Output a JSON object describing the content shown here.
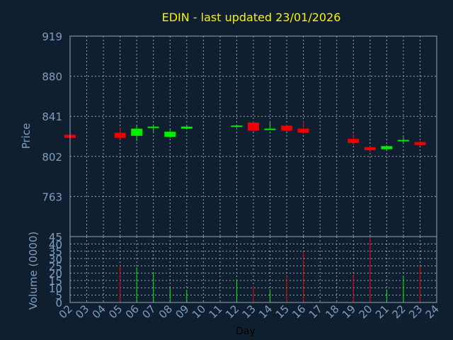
{
  "colors": {
    "background": "#0f1f30",
    "panel": "#0f1f30",
    "border": "#8fa6c0",
    "grid": "#8fa6c0",
    "title": "#f5f500",
    "axis_text": "#7f9ec0",
    "xlabel": "#000000",
    "up": "#00ee00",
    "down": "#ee0000"
  },
  "chart_data": [
    {
      "type": "candlestick",
      "title": "EDIN - last updated 23/01/2026",
      "ylabel": "Price",
      "ylim": [
        724,
        919
      ],
      "yticks": [
        919,
        880,
        841,
        802,
        763
      ],
      "grid": true,
      "candles": [
        {
          "x": 2,
          "open": 823,
          "high": 823,
          "low": 820,
          "close": 820
        },
        {
          "x": 5,
          "open": 825,
          "high": 830,
          "low": 818,
          "close": 820
        },
        {
          "x": 6,
          "open": 822,
          "high": 832,
          "low": 817,
          "close": 829
        },
        {
          "x": 7,
          "open": 830,
          "high": 832,
          "low": 826,
          "close": 831
        },
        {
          "x": 8,
          "open": 821,
          "high": 828,
          "low": 820,
          "close": 826
        },
        {
          "x": 9,
          "open": 829,
          "high": 832,
          "low": 828,
          "close": 831
        },
        {
          "x": 12,
          "open": 831,
          "high": 833,
          "low": 830,
          "close": 832
        },
        {
          "x": 13,
          "open": 835,
          "high": 836,
          "low": 826,
          "close": 827
        },
        {
          "x": 14,
          "open": 828,
          "high": 835,
          "low": 828,
          "close": 829
        },
        {
          "x": 15,
          "open": 832,
          "high": 833,
          "low": 826,
          "close": 827
        },
        {
          "x": 16,
          "open": 829,
          "high": 836,
          "low": 824,
          "close": 825
        },
        {
          "x": 19,
          "open": 819,
          "high": 824,
          "low": 813,
          "close": 815
        },
        {
          "x": 20,
          "open": 811,
          "high": 812,
          "low": 806,
          "close": 808
        },
        {
          "x": 21,
          "open": 809,
          "high": 813,
          "low": 808,
          "close": 812
        },
        {
          "x": 22,
          "open": 817,
          "high": 821,
          "low": 815,
          "close": 818
        },
        {
          "x": 23,
          "open": 816,
          "high": 817,
          "low": 812,
          "close": 813
        }
      ]
    },
    {
      "type": "bar",
      "ylabel": "Volume (0000)",
      "xlabel": "Day",
      "ylim": [
        0,
        45
      ],
      "yticks": [
        45,
        40,
        35,
        30,
        25,
        20,
        15,
        10,
        5,
        0
      ],
      "xticks": [
        "02",
        "03",
        "04",
        "05",
        "06",
        "07",
        "08",
        "09",
        "10",
        "11",
        "12",
        "13",
        "14",
        "15",
        "16",
        "17",
        "18",
        "19",
        "20",
        "21",
        "22",
        "23",
        "24"
      ],
      "grid": true,
      "bars": [
        {
          "x": 5,
          "value": 25,
          "dir": "down"
        },
        {
          "x": 6,
          "value": 24,
          "dir": "up"
        },
        {
          "x": 7,
          "value": 20,
          "dir": "up"
        },
        {
          "x": 8,
          "value": 10,
          "dir": "up"
        },
        {
          "x": 9,
          "value": 8,
          "dir": "up"
        },
        {
          "x": 12,
          "value": 15,
          "dir": "up"
        },
        {
          "x": 13,
          "value": 11,
          "dir": "down"
        },
        {
          "x": 14,
          "value": 9,
          "dir": "up"
        },
        {
          "x": 15,
          "value": 18,
          "dir": "down"
        },
        {
          "x": 16,
          "value": 35,
          "dir": "down"
        },
        {
          "x": 19,
          "value": 20,
          "dir": "down"
        },
        {
          "x": 20,
          "value": 45,
          "dir": "down"
        },
        {
          "x": 21,
          "value": 9,
          "dir": "up"
        },
        {
          "x": 22,
          "value": 18,
          "dir": "up"
        },
        {
          "x": 23,
          "value": 25,
          "dir": "down"
        }
      ]
    }
  ]
}
